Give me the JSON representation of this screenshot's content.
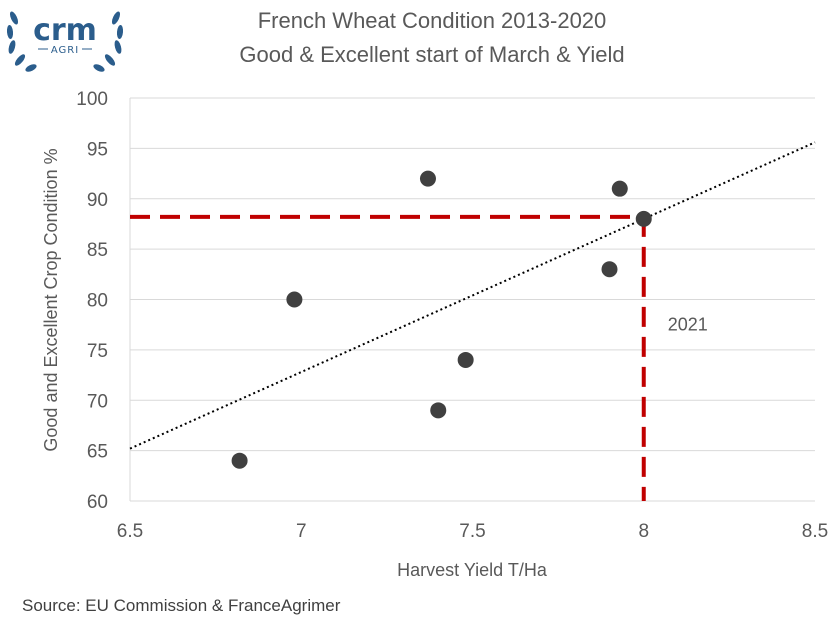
{
  "logo": {
    "main": "crm",
    "sub": "AGRI",
    "color": "#2b5d8c"
  },
  "chart_data": {
    "type": "scatter",
    "title": "French Wheat Condition 2013-2020",
    "subtitle": "Good & Excellent start of March & Yield",
    "xlabel": "Harvest Yield T/Ha",
    "ylabel": "Good and Excellent Crop Condition %",
    "xlim": [
      6.5,
      8.5
    ],
    "ylim": [
      60,
      100
    ],
    "xticks": [
      6.5,
      7,
      7.5,
      8,
      8.5
    ],
    "xtick_labels": [
      "6.5",
      "7",
      "7.5",
      "8",
      "8.5"
    ],
    "yticks": [
      60,
      65,
      70,
      75,
      80,
      85,
      90,
      95,
      100
    ],
    "ytick_labels": [
      "60",
      "65",
      "70",
      "75",
      "80",
      "85",
      "90",
      "95",
      "100"
    ],
    "grid": "horizontal",
    "points": [
      {
        "x": 6.82,
        "y": 64
      },
      {
        "x": 6.98,
        "y": 80
      },
      {
        "x": 7.37,
        "y": 92
      },
      {
        "x": 7.4,
        "y": 69
      },
      {
        "x": 7.48,
        "y": 74
      },
      {
        "x": 7.9,
        "y": 83
      },
      {
        "x": 7.93,
        "y": 91
      },
      {
        "x": 8.0,
        "y": 88
      }
    ],
    "trendline": {
      "style": "dotted",
      "x": [
        6.5,
        8.5
      ],
      "y": [
        65.2,
        95.6
      ]
    },
    "reference_point": {
      "x": 8.0,
      "y": 88.2,
      "label": "2021",
      "label_y": 77.5,
      "color": "#c00000"
    },
    "marker_color": "#404040",
    "source": "Source: EU Commission & FranceAgrimer"
  }
}
